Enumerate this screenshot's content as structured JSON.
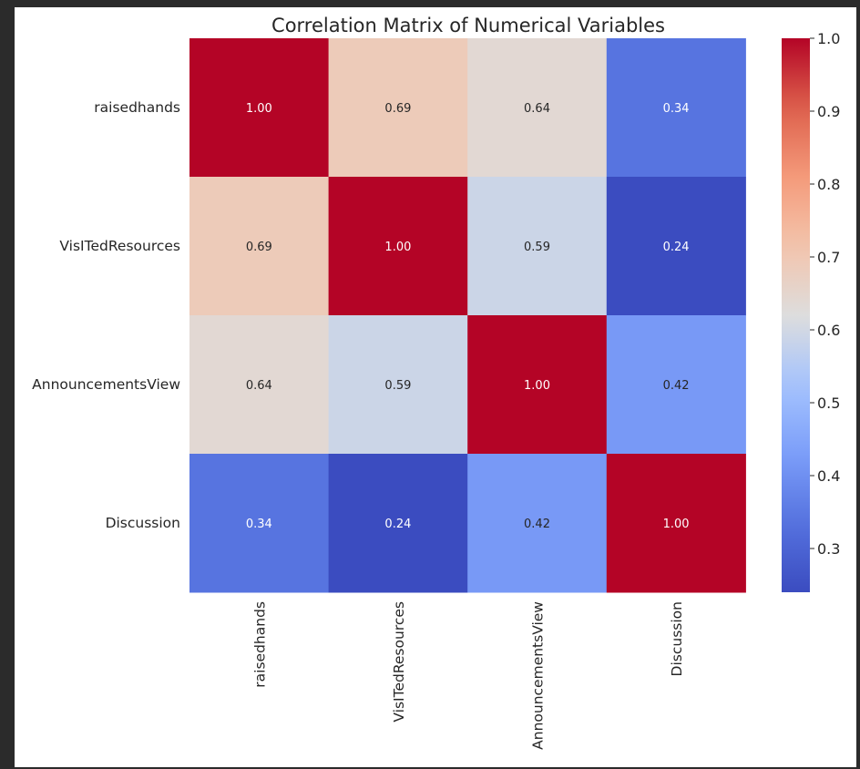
{
  "chart_data": {
    "type": "heatmap",
    "title": "Correlation Matrix of Numerical Variables",
    "row_labels": [
      "raisedhands",
      "VisITedResources",
      "AnnouncementsView",
      "Discussion"
    ],
    "col_labels": [
      "raisedhands",
      "VisITedResources",
      "AnnouncementsView",
      "Discussion"
    ],
    "values": [
      [
        1.0,
        0.69,
        0.64,
        0.34
      ],
      [
        0.69,
        1.0,
        0.59,
        0.24
      ],
      [
        0.64,
        0.59,
        1.0,
        0.42
      ],
      [
        0.34,
        0.24,
        0.42,
        1.0
      ]
    ],
    "annotations": [
      [
        "1.00",
        "0.69",
        "0.64",
        "0.34"
      ],
      [
        "0.69",
        "1.00",
        "0.59",
        "0.24"
      ],
      [
        "0.64",
        "0.59",
        "1.00",
        "0.42"
      ],
      [
        "0.34",
        "0.24",
        "0.42",
        "1.00"
      ]
    ],
    "colormap": "coolwarm",
    "vmin": 0.24,
    "vmax": 1.0,
    "colorbar_ticks": [
      "1.0",
      "0.9",
      "0.8",
      "0.7",
      "0.6",
      "0.5",
      "0.4",
      "0.3"
    ],
    "colorbar_tick_values": [
      1.0,
      0.9,
      0.8,
      0.7,
      0.6,
      0.5,
      0.4,
      0.3
    ]
  },
  "colors": {
    "page_background": "#2b2b2b",
    "figure_background": "#ffffff",
    "text": "#262626"
  }
}
